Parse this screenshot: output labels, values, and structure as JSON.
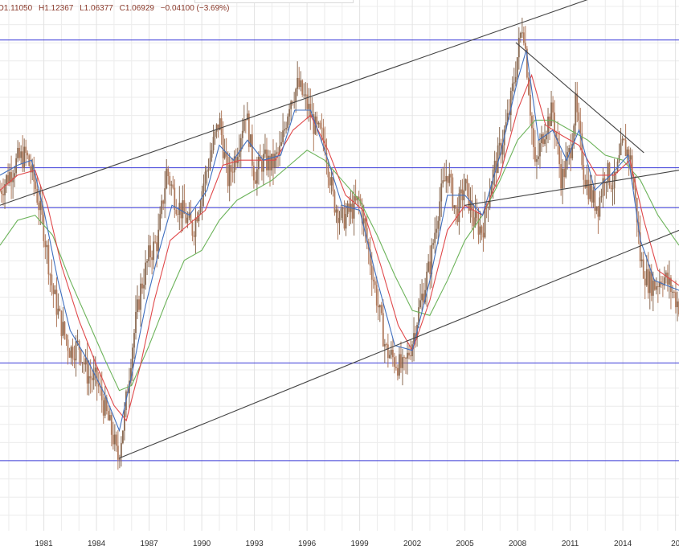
{
  "ohlc": {
    "open": "O1.11050",
    "high": "H1.12367",
    "low": "L1.06377",
    "close": "C1.06929",
    "change": "−0.04100 (−3.69%)"
  },
  "colors": {
    "candle": "#8a6a52",
    "candle_down": "#b07a5c",
    "ma_short": "#3f6fbf",
    "ma_mid": "#e0494b",
    "ma_long": "#6cb35a",
    "horizontal_line": "#3a3ad8",
    "trend_line": "#444444",
    "grid": "#ececec"
  },
  "chart_data": {
    "type": "candlestick",
    "title": "",
    "xlabel": "",
    "ylabel": "",
    "x_ticks": [
      "1981",
      "1984",
      "1987",
      "1990",
      "1993",
      "1996",
      "1999",
      "2002",
      "2005",
      "2008",
      "2011",
      "2014",
      "20"
    ],
    "x_range": [
      1978.5,
      2017.2
    ],
    "y_range": [
      0.62,
      1.68
    ],
    "grid": true,
    "price_path": [
      [
        1978.5,
        1.3
      ],
      [
        1979.0,
        1.33
      ],
      [
        1979.5,
        1.36
      ],
      [
        1980.0,
        1.37
      ],
      [
        1980.5,
        1.31
      ],
      [
        1981.0,
        1.22
      ],
      [
        1981.5,
        1.1
      ],
      [
        1982.0,
        1.03
      ],
      [
        1982.5,
        0.98
      ],
      [
        1983.0,
        0.99
      ],
      [
        1983.5,
        0.93
      ],
      [
        1984.0,
        0.92
      ],
      [
        1984.5,
        0.86
      ],
      [
        1985.0,
        0.8
      ],
      [
        1985.2,
        0.76
      ],
      [
        1985.6,
        0.85
      ],
      [
        1986.0,
        0.98
      ],
      [
        1986.5,
        1.1
      ],
      [
        1987.0,
        1.17
      ],
      [
        1987.5,
        1.2
      ],
      [
        1988.0,
        1.34
      ],
      [
        1988.5,
        1.28
      ],
      [
        1989.0,
        1.25
      ],
      [
        1989.5,
        1.22
      ],
      [
        1990.0,
        1.3
      ],
      [
        1990.5,
        1.37
      ],
      [
        1991.0,
        1.44
      ],
      [
        1991.5,
        1.32
      ],
      [
        1992.0,
        1.38
      ],
      [
        1992.5,
        1.46
      ],
      [
        1993.0,
        1.33
      ],
      [
        1993.5,
        1.36
      ],
      [
        1994.0,
        1.35
      ],
      [
        1994.5,
        1.38
      ],
      [
        1995.0,
        1.48
      ],
      [
        1995.5,
        1.51
      ],
      [
        1996.0,
        1.47
      ],
      [
        1996.5,
        1.42
      ],
      [
        1997.0,
        1.4
      ],
      [
        1997.5,
        1.28
      ],
      [
        1998.0,
        1.24
      ],
      [
        1998.5,
        1.26
      ],
      [
        1999.0,
        1.28
      ],
      [
        1999.5,
        1.18
      ],
      [
        2000.0,
        1.08
      ],
      [
        2000.5,
        0.98
      ],
      [
        2001.0,
        0.96
      ],
      [
        2001.5,
        0.94
      ],
      [
        2002.0,
        1.0
      ],
      [
        2002.5,
        1.08
      ],
      [
        2003.0,
        1.15
      ],
      [
        2003.5,
        1.27
      ],
      [
        2004.0,
        1.34
      ],
      [
        2004.5,
        1.25
      ],
      [
        2005.0,
        1.31
      ],
      [
        2005.5,
        1.24
      ],
      [
        2006.0,
        1.22
      ],
      [
        2006.5,
        1.32
      ],
      [
        2007.0,
        1.38
      ],
      [
        2007.5,
        1.45
      ],
      [
        2008.0,
        1.57
      ],
      [
        2008.3,
        1.64
      ],
      [
        2008.6,
        1.52
      ],
      [
        2009.0,
        1.34
      ],
      [
        2009.5,
        1.42
      ],
      [
        2010.0,
        1.46
      ],
      [
        2010.5,
        1.32
      ],
      [
        2011.0,
        1.38
      ],
      [
        2011.3,
        1.47
      ],
      [
        2011.8,
        1.33
      ],
      [
        2012.3,
        1.28
      ],
      [
        2012.6,
        1.27
      ],
      [
        2013.0,
        1.34
      ],
      [
        2013.5,
        1.31
      ],
      [
        2014.0,
        1.39
      ],
      [
        2014.4,
        1.37
      ],
      [
        2014.8,
        1.25
      ],
      [
        2015.0,
        1.16
      ],
      [
        2015.4,
        1.12
      ],
      [
        2015.8,
        1.11
      ],
      [
        2016.3,
        1.13
      ],
      [
        2016.8,
        1.1
      ],
      [
        2017.2,
        1.07
      ]
    ],
    "ma_short": [
      [
        1978.5,
        1.33
      ],
      [
        1979.5,
        1.35
      ],
      [
        1980.3,
        1.36
      ],
      [
        1981.0,
        1.26
      ],
      [
        1981.8,
        1.12
      ],
      [
        1982.5,
        1.02
      ],
      [
        1983.5,
        0.96
      ],
      [
        1984.5,
        0.89
      ],
      [
        1985.3,
        0.82
      ],
      [
        1986.0,
        0.93
      ],
      [
        1986.8,
        1.07
      ],
      [
        1987.5,
        1.17
      ],
      [
        1988.3,
        1.27
      ],
      [
        1989.3,
        1.25
      ],
      [
        1990.3,
        1.3
      ],
      [
        1991.0,
        1.39
      ],
      [
        1991.8,
        1.36
      ],
      [
        1992.6,
        1.4
      ],
      [
        1993.5,
        1.36
      ],
      [
        1994.5,
        1.37
      ],
      [
        1995.3,
        1.46
      ],
      [
        1996.2,
        1.46
      ],
      [
        1997.2,
        1.36
      ],
      [
        1998.0,
        1.27
      ],
      [
        1999.0,
        1.26
      ],
      [
        2000.0,
        1.12
      ],
      [
        2001.0,
        0.99
      ],
      [
        2002.0,
        0.98
      ],
      [
        2003.0,
        1.12
      ],
      [
        2004.0,
        1.29
      ],
      [
        2005.0,
        1.29
      ],
      [
        2006.0,
        1.25
      ],
      [
        2007.0,
        1.37
      ],
      [
        2008.0,
        1.52
      ],
      [
        2008.5,
        1.58
      ],
      [
        2009.2,
        1.4
      ],
      [
        2010.0,
        1.42
      ],
      [
        2010.8,
        1.36
      ],
      [
        2011.5,
        1.42
      ],
      [
        2012.4,
        1.3
      ],
      [
        2013.3,
        1.33
      ],
      [
        2014.3,
        1.37
      ],
      [
        2015.0,
        1.2
      ],
      [
        2015.8,
        1.12
      ],
      [
        2017.2,
        1.1
      ]
    ],
    "ma_mid": [
      [
        1978.5,
        1.3
      ],
      [
        1979.5,
        1.33
      ],
      [
        1980.5,
        1.34
      ],
      [
        1981.2,
        1.27
      ],
      [
        1982.0,
        1.15
      ],
      [
        1983.0,
        1.04
      ],
      [
        1984.0,
        0.95
      ],
      [
        1985.0,
        0.87
      ],
      [
        1985.7,
        0.84
      ],
      [
        1986.5,
        0.95
      ],
      [
        1987.3,
        1.08
      ],
      [
        1988.2,
        1.2
      ],
      [
        1989.2,
        1.23
      ],
      [
        1990.2,
        1.26
      ],
      [
        1991.2,
        1.35
      ],
      [
        1992.2,
        1.36
      ],
      [
        1993.2,
        1.36
      ],
      [
        1994.2,
        1.36
      ],
      [
        1995.2,
        1.42
      ],
      [
        1996.2,
        1.45
      ],
      [
        1997.2,
        1.38
      ],
      [
        1998.2,
        1.29
      ],
      [
        1999.2,
        1.26
      ],
      [
        2000.2,
        1.15
      ],
      [
        2001.2,
        1.03
      ],
      [
        2002.0,
        0.98
      ],
      [
        2003.0,
        1.08
      ],
      [
        2004.0,
        1.22
      ],
      [
        2005.0,
        1.27
      ],
      [
        2006.0,
        1.25
      ],
      [
        2007.0,
        1.33
      ],
      [
        2008.0,
        1.46
      ],
      [
        2008.8,
        1.53
      ],
      [
        2009.6,
        1.43
      ],
      [
        2010.5,
        1.41
      ],
      [
        2011.5,
        1.39
      ],
      [
        2012.5,
        1.33
      ],
      [
        2013.5,
        1.33
      ],
      [
        2014.4,
        1.36
      ],
      [
        2015.2,
        1.24
      ],
      [
        2016.0,
        1.14
      ],
      [
        2017.2,
        1.11
      ]
    ],
    "ma_long": [
      [
        1978.5,
        1.19
      ],
      [
        1979.5,
        1.24
      ],
      [
        1980.5,
        1.25
      ],
      [
        1981.5,
        1.21
      ],
      [
        1982.5,
        1.12
      ],
      [
        1983.5,
        1.04
      ],
      [
        1984.5,
        0.96
      ],
      [
        1985.3,
        0.9
      ],
      [
        1986.0,
        0.91
      ],
      [
        1987.0,
        0.99
      ],
      [
        1988.0,
        1.08
      ],
      [
        1989.0,
        1.16
      ],
      [
        1990.0,
        1.18
      ],
      [
        1991.0,
        1.24
      ],
      [
        1992.0,
        1.28
      ],
      [
        1993.0,
        1.3
      ],
      [
        1994.0,
        1.32
      ],
      [
        1995.0,
        1.35
      ],
      [
        1996.0,
        1.38
      ],
      [
        1997.0,
        1.36
      ],
      [
        1998.0,
        1.32
      ],
      [
        1999.0,
        1.28
      ],
      [
        2000.0,
        1.21
      ],
      [
        2001.0,
        1.13
      ],
      [
        2002.0,
        1.06
      ],
      [
        2003.0,
        1.05
      ],
      [
        2004.0,
        1.12
      ],
      [
        2005.0,
        1.2
      ],
      [
        2006.0,
        1.25
      ],
      [
        2007.0,
        1.32
      ],
      [
        2008.0,
        1.4
      ],
      [
        2009.0,
        1.44
      ],
      [
        2010.0,
        1.44
      ],
      [
        2011.0,
        1.42
      ],
      [
        2012.0,
        1.4
      ],
      [
        2013.0,
        1.37
      ],
      [
        2014.0,
        1.36
      ],
      [
        2015.0,
        1.32
      ],
      [
        2016.0,
        1.25
      ],
      [
        2017.2,
        1.19
      ]
    ],
    "horizontal_levels": [
      1.6,
      1.345,
      1.265,
      0.955,
      0.76
    ],
    "trend_lines": [
      [
        [
          1978.5,
          1.27
        ],
        [
          2016.0,
          1.73
        ]
      ],
      [
        [
          1985.3,
          0.765
        ],
        [
          2017.2,
          1.22
        ]
      ],
      [
        [
          2007.9,
          1.595
        ],
        [
          2015.2,
          1.375
        ]
      ],
      [
        [
          2005.0,
          1.27
        ],
        [
          2017.2,
          1.34
        ]
      ]
    ]
  }
}
